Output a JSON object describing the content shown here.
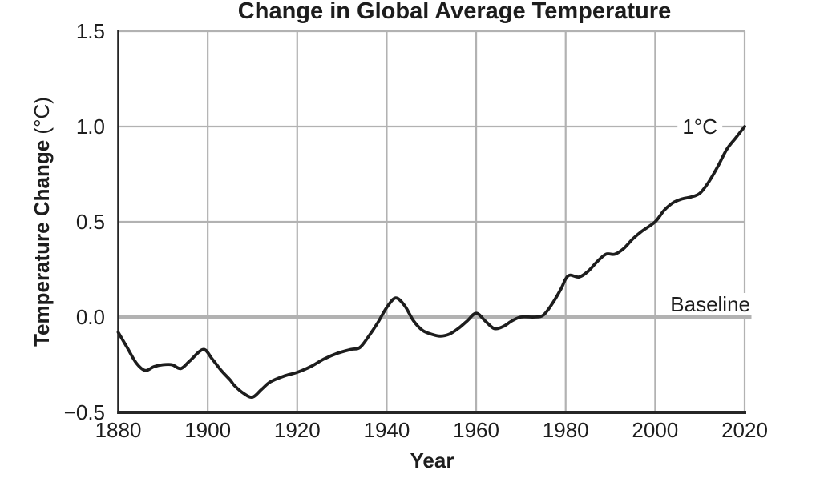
{
  "chart_data": {
    "type": "line",
    "title": "Change in Global Average Temperature",
    "xlabel": "Year",
    "ylabel": "Temperature Change",
    "ylabel_unit": " (°C)",
    "xlim": [
      1880,
      2020
    ],
    "ylim": [
      -0.5,
      1.5
    ],
    "x_ticks": [
      1880,
      1900,
      1920,
      1940,
      1960,
      1980,
      2000,
      2020
    ],
    "x_tick_labels": [
      "1880",
      "1900",
      "1920",
      "1940",
      "1960",
      "1980",
      "2000",
      "2020"
    ],
    "y_ticks": [
      -0.5,
      0.0,
      0.5,
      1.0,
      1.5
    ],
    "y_tick_labels": [
      "−0.5",
      "0.0",
      "0.5",
      "1.0",
      "1.5"
    ],
    "grid": true,
    "legend": "none",
    "baseline_value": 0.0,
    "annotations": [
      {
        "text": "1°C",
        "x": 2010,
        "y": 1.0
      },
      {
        "text": "Baseline",
        "x": 2020,
        "y": 0.0
      }
    ],
    "colors": {
      "line": "#1d1d1d",
      "grid": "#b2b2b2",
      "baseline": "#b2b2b2",
      "axis": "#262626",
      "text": "#1d1d1d",
      "background": "#ffffff"
    },
    "series": [
      {
        "name": "Temperature change",
        "points": [
          [
            1880,
            -0.08
          ],
          [
            1882,
            -0.16
          ],
          [
            1884,
            -0.24
          ],
          [
            1886,
            -0.28
          ],
          [
            1888,
            -0.26
          ],
          [
            1890,
            -0.25
          ],
          [
            1892,
            -0.25
          ],
          [
            1894,
            -0.27
          ],
          [
            1896,
            -0.23
          ],
          [
            1899,
            -0.17
          ],
          [
            1901,
            -0.22
          ],
          [
            1903,
            -0.28
          ],
          [
            1905,
            -0.33
          ],
          [
            1906,
            -0.36
          ],
          [
            1908,
            -0.4
          ],
          [
            1910,
            -0.42
          ],
          [
            1912,
            -0.38
          ],
          [
            1914,
            -0.34
          ],
          [
            1917,
            -0.31
          ],
          [
            1920,
            -0.29
          ],
          [
            1923,
            -0.26
          ],
          [
            1926,
            -0.22
          ],
          [
            1929,
            -0.19
          ],
          [
            1932,
            -0.17
          ],
          [
            1934,
            -0.16
          ],
          [
            1936,
            -0.1
          ],
          [
            1938,
            -0.03
          ],
          [
            1940,
            0.05
          ],
          [
            1942,
            0.1
          ],
          [
            1944,
            0.06
          ],
          [
            1946,
            -0.02
          ],
          [
            1948,
            -0.07
          ],
          [
            1950,
            -0.09
          ],
          [
            1952,
            -0.1
          ],
          [
            1954,
            -0.09
          ],
          [
            1956,
            -0.06
          ],
          [
            1958,
            -0.02
          ],
          [
            1960,
            0.02
          ],
          [
            1962,
            -0.02
          ],
          [
            1964,
            -0.06
          ],
          [
            1966,
            -0.05
          ],
          [
            1968,
            -0.02
          ],
          [
            1970,
            0.0
          ],
          [
            1973,
            0.0
          ],
          [
            1975,
            0.01
          ],
          [
            1977,
            0.07
          ],
          [
            1979,
            0.15
          ],
          [
            1980,
            0.2
          ],
          [
            1981,
            0.22
          ],
          [
            1983,
            0.21
          ],
          [
            1985,
            0.24
          ],
          [
            1987,
            0.29
          ],
          [
            1989,
            0.33
          ],
          [
            1991,
            0.33
          ],
          [
            1993,
            0.36
          ],
          [
            1995,
            0.41
          ],
          [
            1997,
            0.45
          ],
          [
            2000,
            0.5
          ],
          [
            2002,
            0.56
          ],
          [
            2004,
            0.6
          ],
          [
            2006,
            0.62
          ],
          [
            2008,
            0.63
          ],
          [
            2010,
            0.65
          ],
          [
            2012,
            0.71
          ],
          [
            2014,
            0.79
          ],
          [
            2016,
            0.88
          ],
          [
            2018,
            0.94
          ],
          [
            2020,
            1.0
          ]
        ]
      }
    ]
  }
}
